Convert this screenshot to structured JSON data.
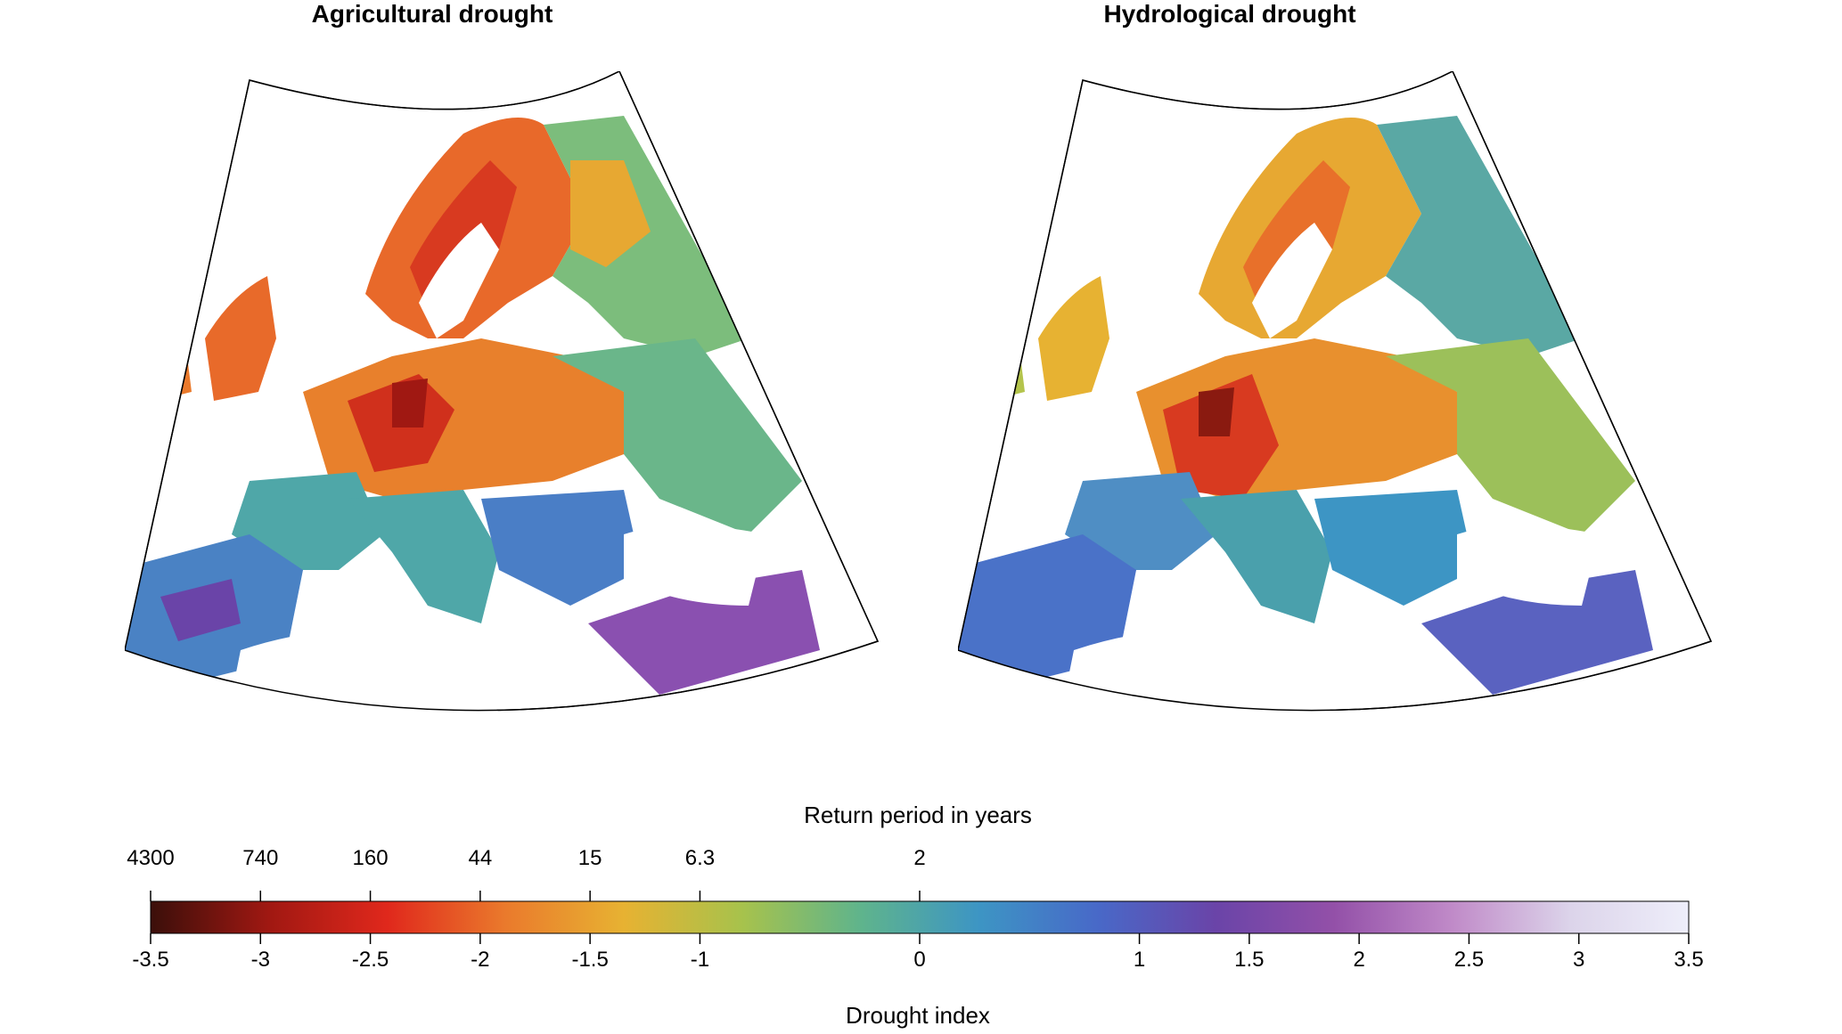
{
  "maps": [
    {
      "id": "agri",
      "title": "Agricultural drought"
    },
    {
      "id": "hydro",
      "title": "Hydrological drought"
    }
  ],
  "colorbar": {
    "top_title": "Return period in years",
    "bottom_title": "Drought index",
    "return_period_ticks": [
      {
        "label": "4300",
        "index": -3.5
      },
      {
        "label": "740",
        "index": -3
      },
      {
        "label": "160",
        "index": -2.5
      },
      {
        "label": "44",
        "index": -2
      },
      {
        "label": "15",
        "index": -1.5
      },
      {
        "label": "6.3",
        "index": -1
      },
      {
        "label": "2",
        "index": 0
      }
    ],
    "index_ticks": [
      "-3.5",
      "-3",
      "-2.5",
      "-2",
      "-1.5",
      "-1",
      "0",
      "1",
      "1.5",
      "2",
      "2.5",
      "3",
      "3.5"
    ],
    "range": [
      -3.5,
      3.5
    ],
    "colors": [
      "#3b0f0a",
      "#a01812",
      "#e0281c",
      "#ea7a2c",
      "#e7b232",
      "#a7c24c",
      "#5fb48c",
      "#3d95c4",
      "#4869c8",
      "#6a44a8",
      "#9350a8",
      "#c08ac8",
      "#dcd4ea",
      "#eeeefa"
    ]
  }
}
